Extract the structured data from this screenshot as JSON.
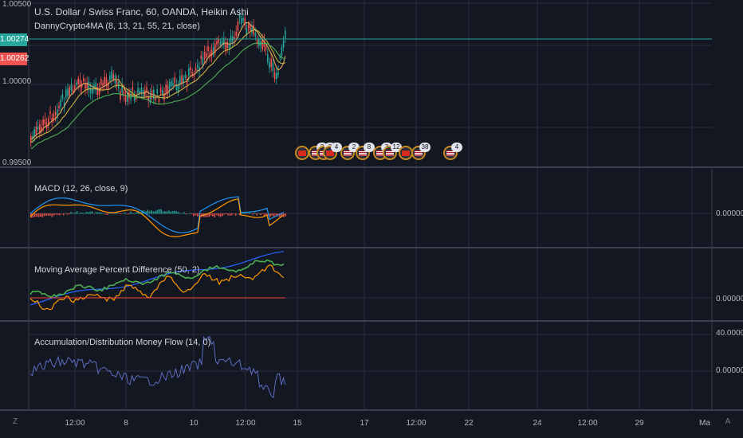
{
  "colors": {
    "background": "#131722",
    "grid": "#2a2e39",
    "separator": "#3b3f4b",
    "bull": "#26a69a",
    "bear": "#ef5350",
    "last_price_line": "#26a69a",
    "ma_fast": "#e0a458",
    "ma_mid": "#c8b040",
    "ma_slow": "#4caf50",
    "macd_line": "#2196f3",
    "signal_line": "#ff9800",
    "mapd_green": "#4caf50",
    "mapd_orange": "#ff9800",
    "mapd_blue": "#2962ff",
    "mapd_red": "#f44336",
    "adm_line": "#5c6bc0"
  },
  "main_pane": {
    "title": "U.S. Dollar / Swiss Franc, 60, OANDA, Heikin Ashi",
    "indicator_label": "DannyCrypto4MA (8, 13, 21, 55, 21, close)",
    "axis_ticks": [
      "1.00500",
      "1.00000",
      "0.99500"
    ],
    "last_price": "1.00274",
    "bid_price": "1.00262"
  },
  "macd_pane": {
    "label": "MACD (12, 26, close, 9)",
    "axis_value": "0.00000"
  },
  "mapd_pane": {
    "label": "Moving Average Percent Difference (50, 2)",
    "axis_value": "0.00000"
  },
  "adm_pane": {
    "label": "Accumulation/Distribution Money Flow (14, 0)",
    "axis_top": "40.00000",
    "axis_value": "0.00000"
  },
  "time_axis": {
    "labels": [
      "12:00",
      "8",
      "10",
      "12:00",
      "15",
      "17",
      "12:00",
      "22",
      "24",
      "12:00",
      "29",
      "Ma"
    ]
  },
  "corner_buttons": {
    "left": "Z",
    "right": "A"
  },
  "events": [
    {
      "flag": "ch",
      "count": ""
    },
    {
      "flag": "us",
      "count": "2"
    },
    {
      "flag": "us",
      "count": "3"
    },
    {
      "flag": "ch",
      "count": "4"
    },
    {
      "flag": "us",
      "count": "2"
    },
    {
      "flag": "us",
      "count": "8"
    },
    {
      "flag": "us",
      "count": "3"
    },
    {
      "flag": "us",
      "count": "12"
    },
    {
      "flag": "ch",
      "count": ""
    },
    {
      "flag": "us",
      "count": "38"
    },
    {
      "flag": "us",
      "count": "4"
    }
  ]
}
